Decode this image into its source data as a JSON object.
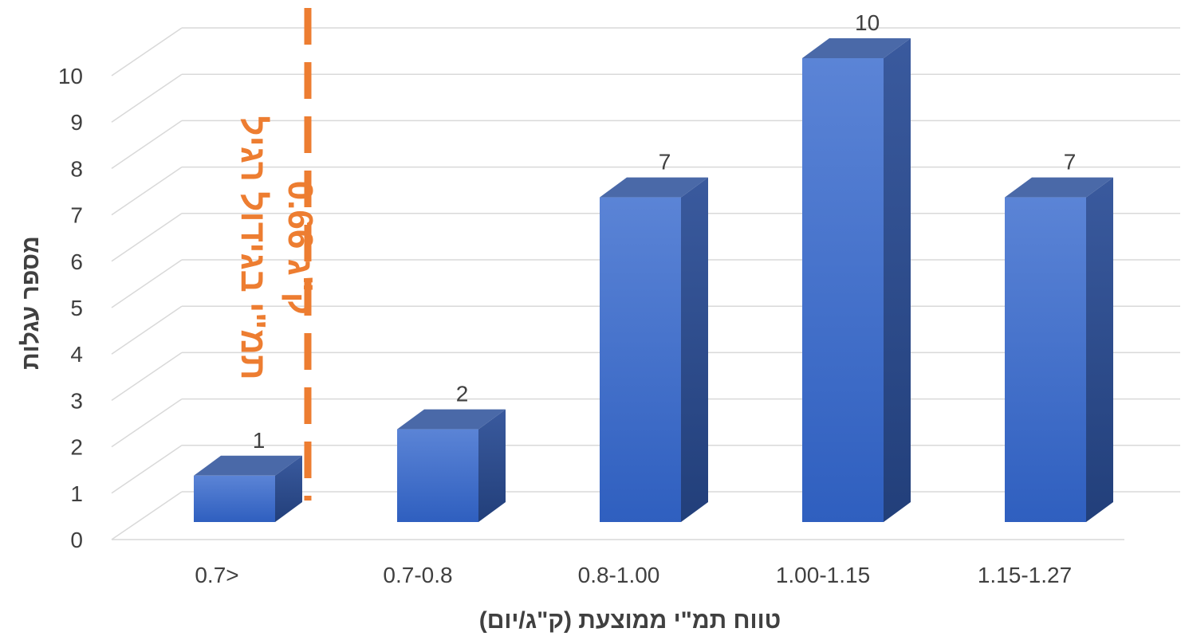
{
  "chart_data": {
    "type": "bar",
    "style": "3d-column",
    "categories": [
      "0.7>",
      "0.7-0.8",
      "0.8-1.00",
      "1.00-1.15",
      "1.15-1.27"
    ],
    "values": [
      1,
      2,
      7,
      10,
      7
    ],
    "data_labels": [
      "1",
      "2",
      "7",
      "10",
      "7"
    ],
    "xlabel": "טווח תמ\"י ממוצעת (ק\"ג/יום)",
    "ylabel": "מספר עגלות",
    "ylim": [
      0,
      10
    ],
    "yticks": [
      "0",
      "1",
      "2",
      "3",
      "4",
      "5",
      "6",
      "7",
      "8",
      "9",
      "10"
    ],
    "grid": true,
    "legend": "none",
    "annotation": {
      "line1": "תמ\"י בגידול רגיל",
      "line2": "0.66 ק\"ג",
      "color": "#ed7d31",
      "line_style": "dashed-vertical"
    },
    "colors": {
      "bar_front_top": "#5b84d6",
      "bar_front_bottom": "#2f5fbf",
      "bar_top": "#4a69a8",
      "bar_side": "#2a4a8c",
      "grid": "#d9d9d9",
      "annotation": "#ed7d31"
    }
  }
}
